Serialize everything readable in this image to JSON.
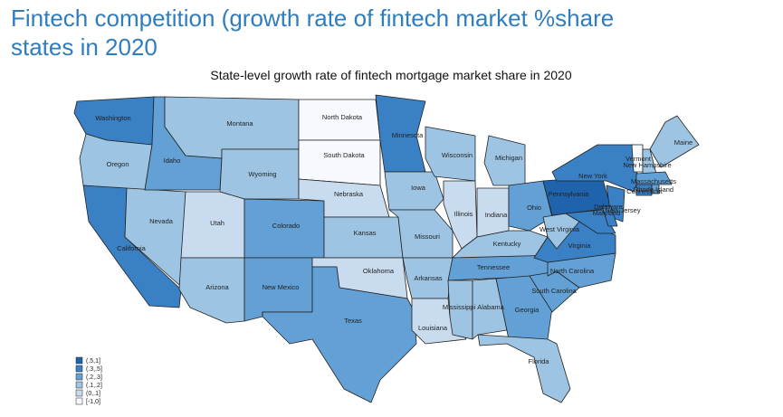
{
  "title": "Fintech competition (growth rate of fintech market %share states in 2020",
  "map_title": "State-level growth rate of fintech mortgage market share in 2020",
  "legend": {
    "labels": [
      "(.5,1]",
      "(.3,.5]",
      "(.2,.3]",
      "(.1,.2]",
      "(0,.1]",
      "[-1,0]"
    ],
    "colors": [
      "#1f63ad",
      "#3a80c4",
      "#62a0d6",
      "#9dc5e3",
      "#c9dcef",
      "#f6f9fd"
    ]
  },
  "states": [
    {
      "name": "Washington",
      "bin": 1
    },
    {
      "name": "Oregon",
      "bin": 3
    },
    {
      "name": "California",
      "bin": 1
    },
    {
      "name": "Nevada",
      "bin": 3
    },
    {
      "name": "Idaho",
      "bin": 2
    },
    {
      "name": "Montana",
      "bin": 3
    },
    {
      "name": "Wyoming",
      "bin": 3
    },
    {
      "name": "Utah",
      "bin": 4
    },
    {
      "name": "Colorado",
      "bin": 2
    },
    {
      "name": "Arizona",
      "bin": 3
    },
    {
      "name": "New Mexico",
      "bin": 2
    },
    {
      "name": "North Dakota",
      "bin": 5
    },
    {
      "name": "South Dakota",
      "bin": 5
    },
    {
      "name": "Nebraska",
      "bin": 4
    },
    {
      "name": "Kansas",
      "bin": 3
    },
    {
      "name": "Oklahoma",
      "bin": 4
    },
    {
      "name": "Texas",
      "bin": 2
    },
    {
      "name": "Minnesota",
      "bin": 1
    },
    {
      "name": "Iowa",
      "bin": 3
    },
    {
      "name": "Missouri",
      "bin": 3
    },
    {
      "name": "Arkansas",
      "bin": 3
    },
    {
      "name": "Louisiana",
      "bin": 4
    },
    {
      "name": "Wisconsin",
      "bin": 3
    },
    {
      "name": "Illinois",
      "bin": 4
    },
    {
      "name": "Michigan",
      "bin": 3
    },
    {
      "name": "Indiana",
      "bin": 4
    },
    {
      "name": "Ohio",
      "bin": 2
    },
    {
      "name": "Kentucky",
      "bin": 3
    },
    {
      "name": "Tennessee",
      "bin": 2
    },
    {
      "name": "Mississippi",
      "bin": 3
    },
    {
      "name": "Alabama",
      "bin": 3
    },
    {
      "name": "Georgia",
      "bin": 2
    },
    {
      "name": "Florida",
      "bin": 3
    },
    {
      "name": "South Carolina",
      "bin": 2
    },
    {
      "name": "North Carolina",
      "bin": 2
    },
    {
      "name": "Virginia",
      "bin": 1
    },
    {
      "name": "West Virginia",
      "bin": 3
    },
    {
      "name": "Pennsylvania",
      "bin": 0
    },
    {
      "name": "New York",
      "bin": 1
    },
    {
      "name": "New Jersey",
      "bin": 1
    },
    {
      "name": "Maryland",
      "bin": 1
    },
    {
      "name": "Delaware",
      "bin": 1
    },
    {
      "name": "Vermont",
      "bin": 5
    },
    {
      "name": "New Hampshire",
      "bin": 3
    },
    {
      "name": "Maine",
      "bin": 3
    },
    {
      "name": "Massachusetts",
      "bin": 2
    },
    {
      "name": "Connecticut",
      "bin": 1
    },
    {
      "name": "Rhode Island",
      "bin": 2
    }
  ]
}
